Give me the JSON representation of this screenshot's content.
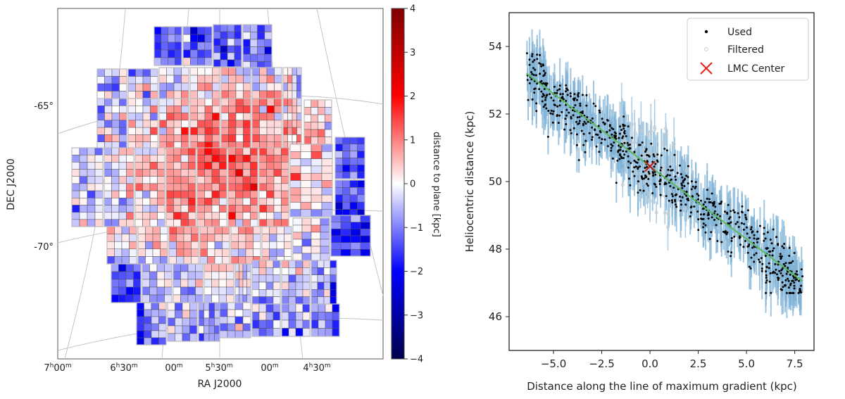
{
  "chart_data": [
    {
      "type": "heatmap",
      "title": "",
      "xlabel": "RA J2000",
      "ylabel": "DEC J2000",
      "x_tick_labels": [
        {
          "h": "7",
          "hs": "h",
          "m": "00",
          "ms": "m"
        },
        {
          "h": "6",
          "hs": "h",
          "m": "30",
          "ms": "m"
        },
        {
          "h": "",
          "hs": "",
          "m": "00",
          "ms": "m"
        },
        {
          "h": "5",
          "hs": "h",
          "m": "30",
          "ms": "m"
        },
        {
          "h": "",
          "hs": "",
          "m": "00",
          "ms": "m"
        },
        {
          "h": "4",
          "hs": "h",
          "m": "30",
          "ms": "m"
        }
      ],
      "y_tick_labels": [
        "-65°",
        "-70°"
      ],
      "colorbar": {
        "label": "distance to plane [kpc]",
        "range": [
          -4,
          4
        ],
        "ticks": [
          4,
          3,
          2,
          1,
          0,
          -1,
          -2,
          -3,
          -4
        ],
        "tick_labels": [
          "4",
          "3",
          "2",
          "1",
          "0",
          "−1",
          "−2",
          "−3",
          "−4"
        ],
        "colormap": "seismic",
        "colors": [
          "#00004c",
          "#0000ff",
          "#ffffff",
          "#ff0000",
          "#7f0000"
        ]
      }
    },
    {
      "type": "scatter",
      "title": "",
      "xlabel": "Distance along the line of maximum gradient (kpc)",
      "ylabel": "Heliocentric distance (kpc)",
      "xlim": [
        -7.3,
        8.5
      ],
      "ylim": [
        45,
        55
      ],
      "x_ticks": [
        -5.0,
        -2.5,
        0.0,
        2.5,
        5.0,
        7.5
      ],
      "x_tick_labels": [
        "−5.0",
        "−2.5",
        "0.0",
        "2.5",
        "5.0",
        "7.5"
      ],
      "y_ticks": [
        46,
        48,
        50,
        52,
        54
      ],
      "y_tick_labels": [
        "46",
        "48",
        "50",
        "52",
        "54"
      ],
      "fit_line": {
        "x": [
          -6.4,
          7.9
        ],
        "y": [
          53.2,
          47.05
        ],
        "color": "#5cb85c"
      },
      "series": [
        {
          "name": "Used",
          "marker": "dot",
          "color": "#000000",
          "errorbar_color": "#7fb2d5"
        },
        {
          "name": "Filtered",
          "marker": "open-circle",
          "color": "#c8c8c8"
        },
        {
          "name": "LMC Center",
          "marker": "x",
          "color": "#e8231b",
          "x": [
            0.0
          ],
          "y": [
            50.45
          ]
        }
      ],
      "legend_placement": "top-right"
    }
  ]
}
